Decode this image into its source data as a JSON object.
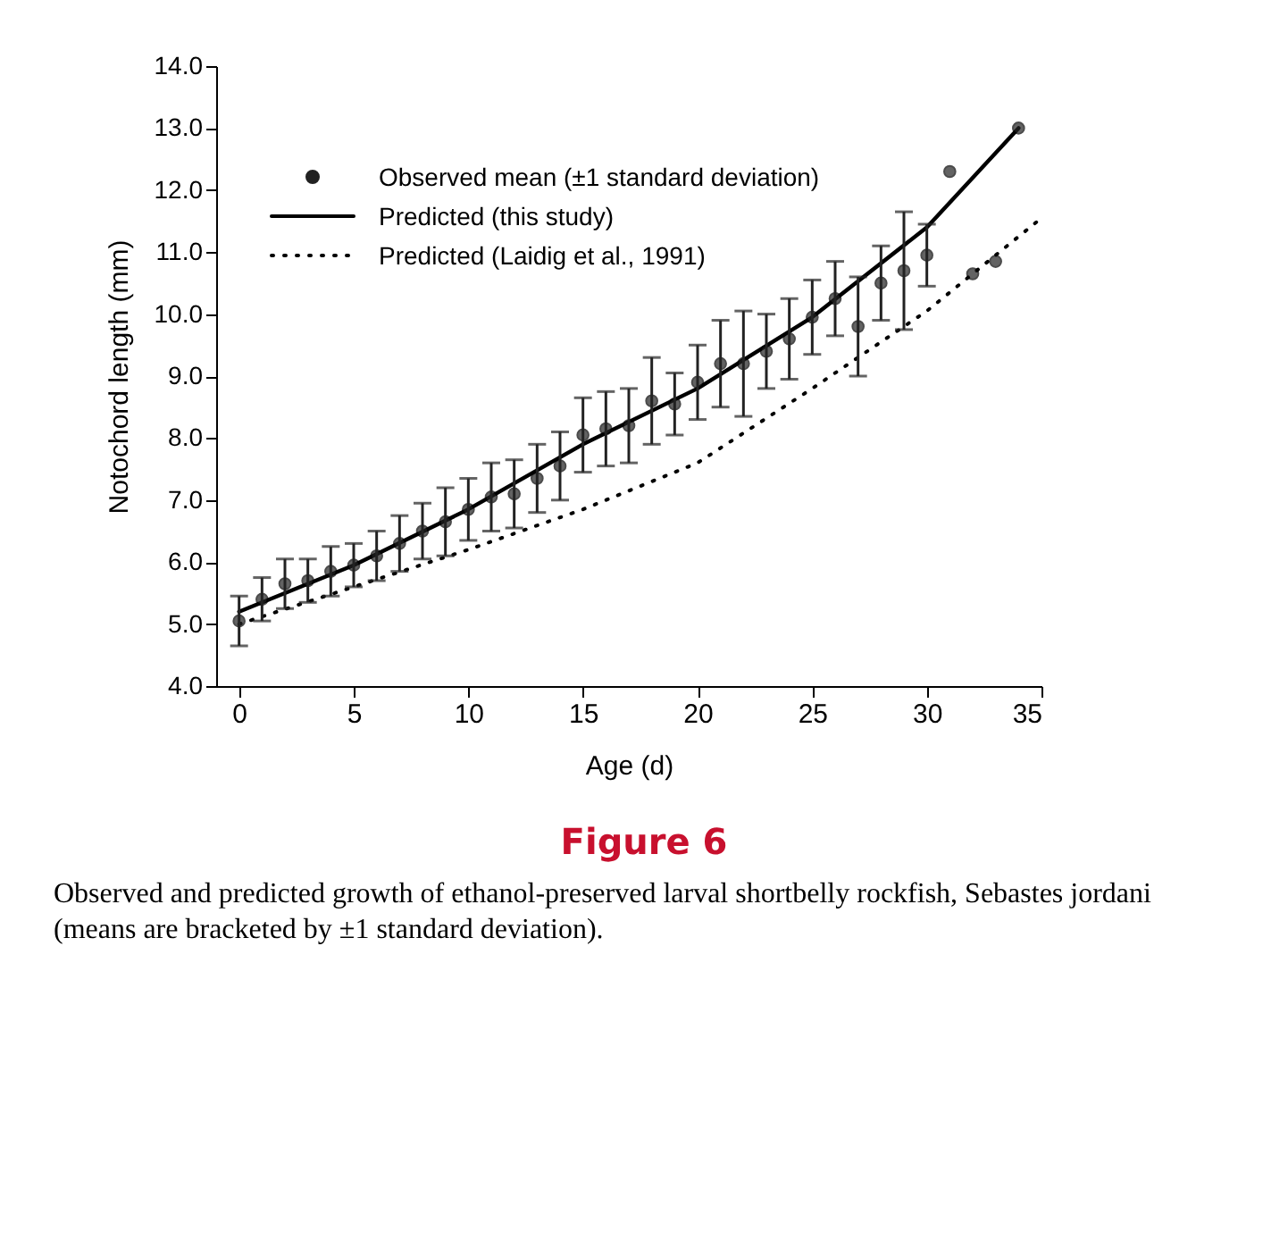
{
  "chart_data": {
    "type": "scatter",
    "xlabel": "Age (d)",
    "ylabel": "Notochord length (mm)",
    "xlim": [
      -1,
      35
    ],
    "xticks": [
      0,
      5,
      10,
      15,
      20,
      25,
      30,
      35
    ],
    "ylim": [
      4,
      14
    ],
    "yticks": [
      {
        "value": 4,
        "label": "4.0"
      },
      {
        "value": 5,
        "label": "5.0"
      },
      {
        "value": 6,
        "label": "6.0"
      },
      {
        "value": 7,
        "label": "7.0"
      },
      {
        "value": 8,
        "label": "8.0"
      },
      {
        "value": 9,
        "label": "9.0"
      },
      {
        "value": 10,
        "label": "10.0"
      },
      {
        "value": 11,
        "label": "11.0"
      },
      {
        "value": 12,
        "label": "12.0"
      },
      {
        "value": 13,
        "label": "13.0"
      },
      {
        "value": 14,
        "label": "14.0"
      }
    ],
    "grid": false,
    "legend": "top left",
    "series": [
      {
        "name": "Observed mean (±1 standard deviation)",
        "marker": "circle",
        "color": "#222222",
        "x": [
          0,
          1,
          2,
          3,
          4,
          5,
          6,
          7,
          8,
          9,
          10,
          11,
          12,
          13,
          14,
          15,
          16,
          17,
          18,
          19,
          20,
          21,
          22,
          23,
          24,
          25,
          26,
          27,
          28,
          29,
          30,
          31,
          32,
          33,
          34
        ],
        "values": [
          5.05,
          5.4,
          5.65,
          5.7,
          5.85,
          5.95,
          6.1,
          6.3,
          6.5,
          6.65,
          6.85,
          7.05,
          7.1,
          7.35,
          7.55,
          8.05,
          8.15,
          8.2,
          8.6,
          8.55,
          8.9,
          9.2,
          9.2,
          9.4,
          9.6,
          9.95,
          10.25,
          9.8,
          10.5,
          10.7,
          10.95,
          12.3,
          10.65,
          10.85,
          13.0
        ],
        "errors": [
          0.4,
          0.35,
          0.4,
          0.35,
          0.4,
          0.35,
          0.4,
          0.45,
          0.45,
          0.55,
          0.5,
          0.55,
          0.55,
          0.55,
          0.55,
          0.6,
          0.6,
          0.6,
          0.7,
          0.5,
          0.6,
          0.7,
          0.85,
          0.6,
          0.65,
          0.6,
          0.6,
          0.8,
          0.6,
          0.95,
          0.5,
          null,
          null,
          null,
          null
        ]
      },
      {
        "name": "Predicted (this study)",
        "type": "line",
        "line_style": "solid",
        "color": "#000000",
        "x": [
          0,
          5,
          10,
          15,
          20,
          25,
          30,
          34
        ],
        "values": [
          5.2,
          5.95,
          6.85,
          7.9,
          8.8,
          9.95,
          11.4,
          13.0
        ]
      },
      {
        "name": "Predicted (Laidig et al., 1991)",
        "type": "line",
        "line_style": "dotted",
        "color": "#000000",
        "x": [
          0,
          5,
          10,
          15,
          20,
          25,
          30,
          35
        ],
        "values": [
          5.0,
          5.6,
          6.2,
          6.85,
          7.6,
          8.8,
          10.05,
          11.55
        ]
      }
    ],
    "annotations": [
      "Figure 6",
      "Observed and predicted growth of ethanol-preserved larval shortbelly rockfish, Sebastes jordani (means are bracketed by ±1 standard deviation)."
    ]
  }
}
